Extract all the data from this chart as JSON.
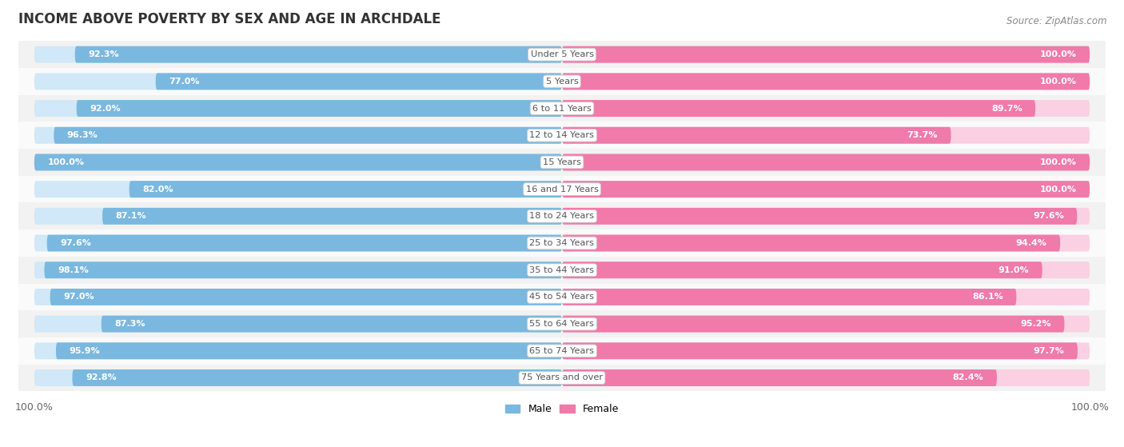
{
  "title": "INCOME ABOVE POVERTY BY SEX AND AGE IN ARCHDALE",
  "source": "Source: ZipAtlas.com",
  "categories": [
    "Under 5 Years",
    "5 Years",
    "6 to 11 Years",
    "12 to 14 Years",
    "15 Years",
    "16 and 17 Years",
    "18 to 24 Years",
    "25 to 34 Years",
    "35 to 44 Years",
    "45 to 54 Years",
    "55 to 64 Years",
    "65 to 74 Years",
    "75 Years and over"
  ],
  "male_values": [
    92.3,
    77.0,
    92.0,
    96.3,
    100.0,
    82.0,
    87.1,
    97.6,
    98.1,
    97.0,
    87.3,
    95.9,
    92.8
  ],
  "female_values": [
    100.0,
    100.0,
    89.7,
    73.7,
    100.0,
    100.0,
    97.6,
    94.4,
    91.0,
    86.1,
    95.2,
    97.7,
    82.4
  ],
  "male_color": "#7ab8e0",
  "female_color": "#f07aaa",
  "male_color_bg": "#d0e8f7",
  "female_color_bg": "#fad0e2",
  "row_bg_even": "#f2f2f2",
  "row_bg_odd": "#fafafa",
  "background_color": "#ffffff",
  "label_color": "#555555",
  "value_color": "#ffffff",
  "title_color": "#333333",
  "source_color": "#888888"
}
